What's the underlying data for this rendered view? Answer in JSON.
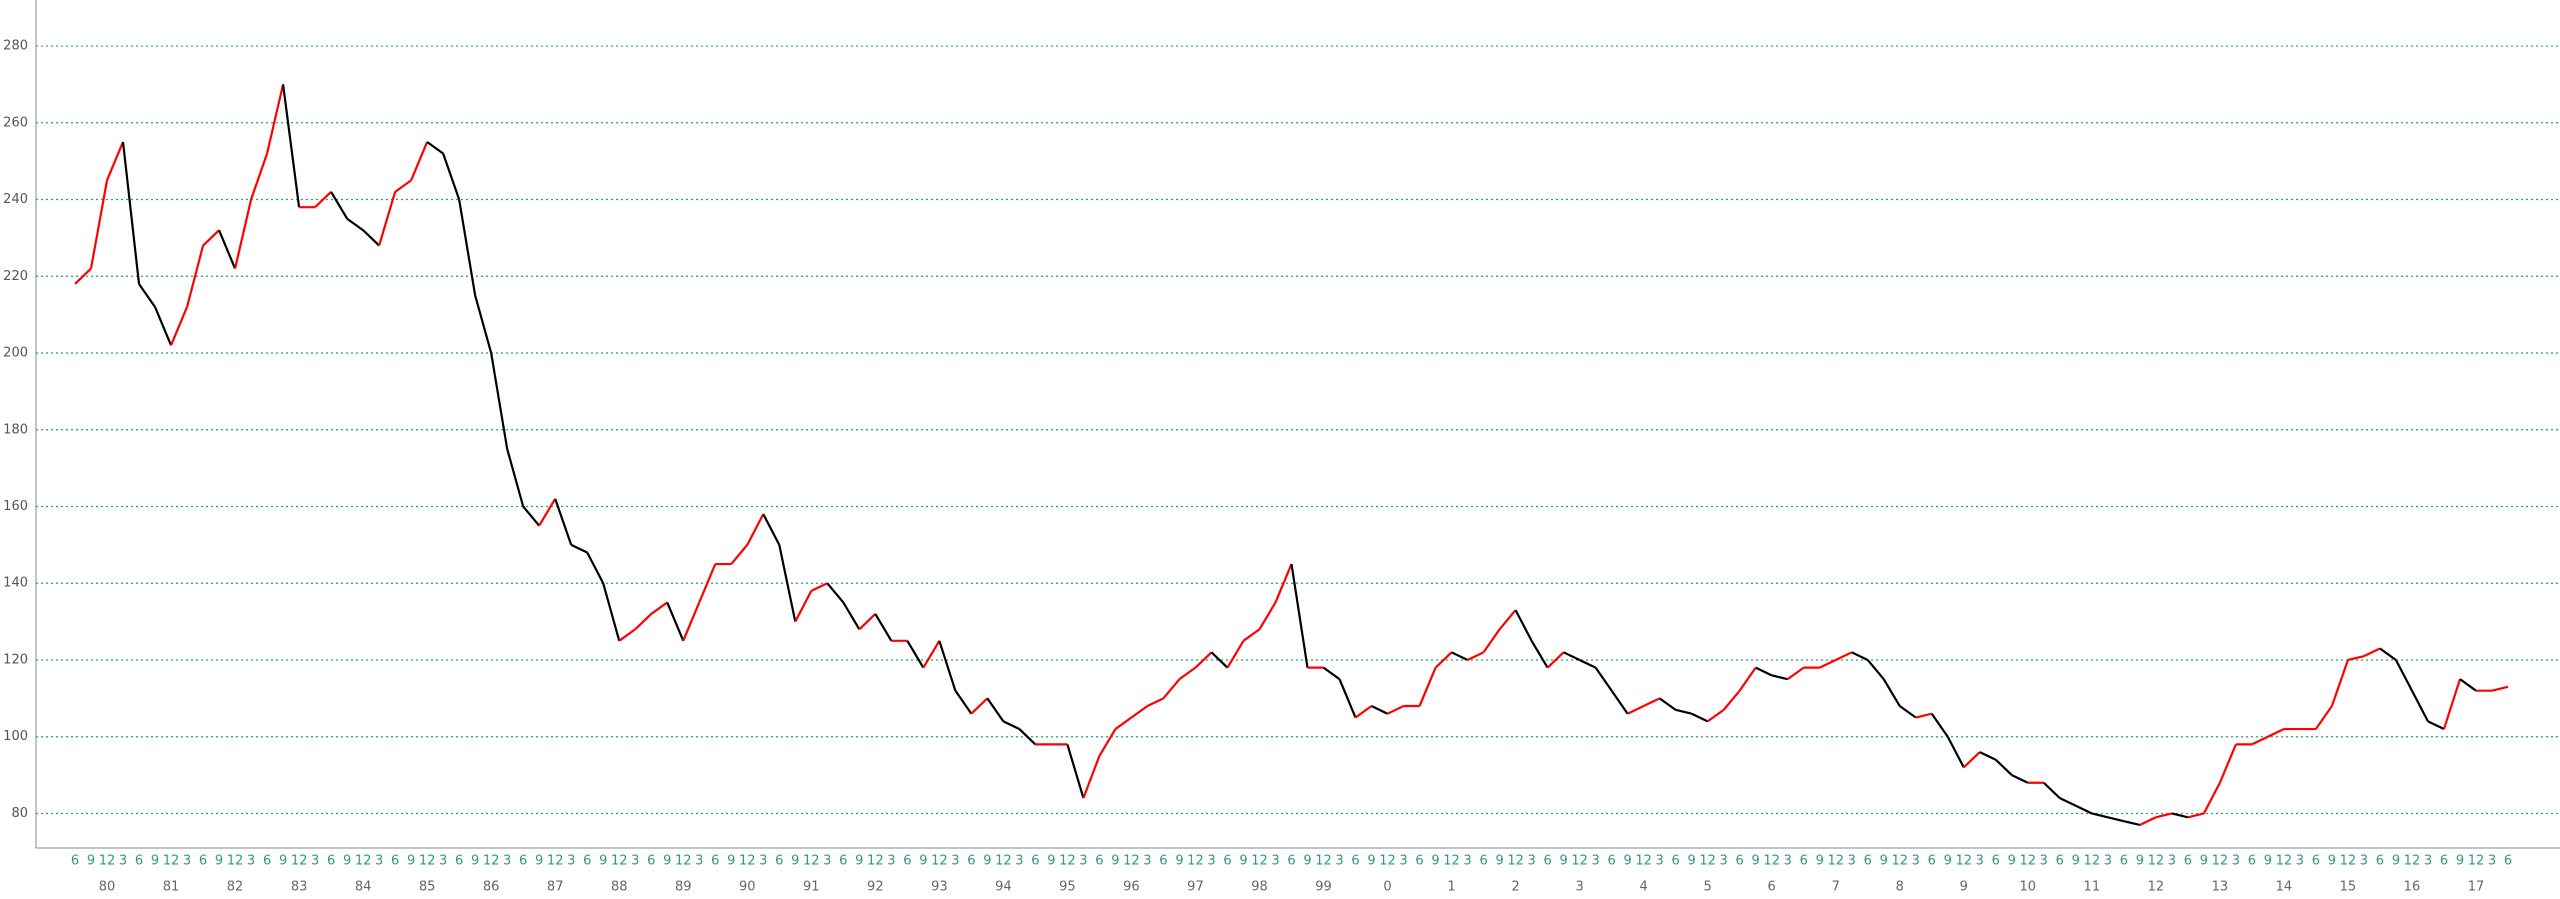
{
  "chart_data": {
    "type": "candle-line",
    "categories": [
      "6",
      "9",
      "12",
      "3",
      "6",
      "9",
      "12",
      "3",
      "6",
      "9",
      "12",
      "3",
      "6",
      "9",
      "12",
      "3",
      "6",
      "9",
      "12",
      "3",
      "6",
      "9",
      "12",
      "3",
      "6",
      "9",
      "12",
      "3",
      "6",
      "9",
      "12",
      "3",
      "6",
      "9",
      "12",
      "3",
      "6",
      "9",
      "12",
      "3",
      "6",
      "9",
      "12",
      "3",
      "6",
      "9",
      "12",
      "3",
      "6",
      "9",
      "12",
      "3",
      "6",
      "9",
      "12",
      "3",
      "6",
      "9",
      "12",
      "3",
      "6",
      "9",
      "12",
      "3",
      "6",
      "9",
      "12",
      "3",
      "6",
      "9",
      "12",
      "3",
      "6",
      "9",
      "12",
      "3",
      "6",
      "9",
      "12",
      "3",
      "6",
      "9",
      "12",
      "3",
      "6",
      "9",
      "12",
      "3",
      "6",
      "9",
      "12",
      "3",
      "6",
      "9",
      "12",
      "3",
      "6",
      "9",
      "12",
      "3",
      "6",
      "9",
      "12",
      "3",
      "6",
      "9",
      "12",
      "3",
      "6",
      "9",
      "12",
      "3",
      "6",
      "9",
      "12",
      "3",
      "6",
      "9",
      "12",
      "3",
      "6",
      "9",
      "12",
      "3",
      "6",
      "9",
      "12",
      "3",
      "6",
      "9",
      "12",
      "3",
      "6",
      "9",
      "12",
      "3",
      "6",
      "9",
      "12",
      "3",
      "6",
      "9",
      "12",
      "3",
      "6",
      "9",
      "12",
      "3",
      "6",
      "9",
      "12",
      "3",
      "6"
    ],
    "year_labels": [
      null,
      null,
      "80",
      null,
      null,
      null,
      "81",
      null,
      null,
      null,
      "82",
      null,
      null,
      null,
      "83",
      null,
      null,
      null,
      "84",
      null,
      null,
      null,
      "85",
      null,
      null,
      null,
      "86",
      null,
      null,
      null,
      "87",
      null,
      null,
      null,
      "88",
      null,
      null,
      null,
      "89",
      null,
      null,
      null,
      "90",
      null,
      null,
      null,
      "91",
      null,
      null,
      null,
      "92",
      null,
      null,
      null,
      "93",
      null,
      null,
      null,
      "94",
      null,
      null,
      null,
      "95",
      null,
      null,
      null,
      "96",
      null,
      null,
      null,
      "97",
      null,
      null,
      null,
      "98",
      null,
      null,
      null,
      "99",
      null,
      null,
      null,
      "0",
      null,
      null,
      null,
      "1",
      null,
      null,
      null,
      "2",
      null,
      null,
      null,
      "3",
      null,
      null,
      null,
      "4",
      null,
      null,
      null,
      "5",
      null,
      null,
      null,
      "6",
      null,
      null,
      null,
      "7",
      null,
      null,
      null,
      "8",
      null,
      null,
      null,
      "9",
      null,
      null,
      null,
      "10",
      null,
      null,
      null,
      "11",
      null,
      null,
      null,
      "12",
      null,
      null,
      null,
      "13",
      null,
      null,
      null,
      "14",
      null,
      null,
      null,
      "15",
      null,
      null,
      null,
      "16",
      null,
      null,
      null,
      "17",
      null,
      null
    ],
    "values": [
      218,
      222,
      245,
      255,
      218,
      212,
      202,
      212,
      228,
      232,
      222,
      240,
      252,
      270,
      238,
      238,
      242,
      235,
      232,
      228,
      242,
      245,
      255,
      252,
      240,
      215,
      200,
      175,
      160,
      155,
      162,
      150,
      148,
      140,
      125,
      128,
      132,
      135,
      125,
      135,
      145,
      145,
      150,
      158,
      150,
      130,
      138,
      140,
      135,
      128,
      132,
      125,
      125,
      118,
      125,
      112,
      106,
      110,
      104,
      102,
      98,
      98,
      98,
      84,
      95,
      102,
      105,
      108,
      110,
      115,
      118,
      122,
      118,
      125,
      128,
      135,
      145,
      118,
      118,
      115,
      105,
      108,
      106,
      108,
      108,
      118,
      122,
      120,
      122,
      128,
      133,
      125,
      118,
      122,
      120,
      118,
      112,
      106,
      108,
      110,
      107,
      106,
      104,
      107,
      112,
      118,
      116,
      115,
      118,
      118,
      120,
      122,
      120,
      115,
      108,
      105,
      106,
      100,
      92,
      96,
      94,
      90,
      88,
      88,
      84,
      82,
      80,
      79,
      78,
      77,
      79,
      80,
      79,
      80,
      88,
      98,
      98,
      100,
      102,
      102,
      102,
      108,
      120,
      121,
      123,
      120,
      112,
      104,
      102,
      115,
      112,
      112,
      113
    ],
    "up_color": "#ff0000",
    "down_color": "#000000",
    "ylim": [
      71,
      292
    ],
    "yticks": [
      80,
      100,
      120,
      140,
      160,
      180,
      200,
      220,
      240,
      260,
      280
    ],
    "grid": true,
    "grid_color": "#2e9a7e"
  }
}
